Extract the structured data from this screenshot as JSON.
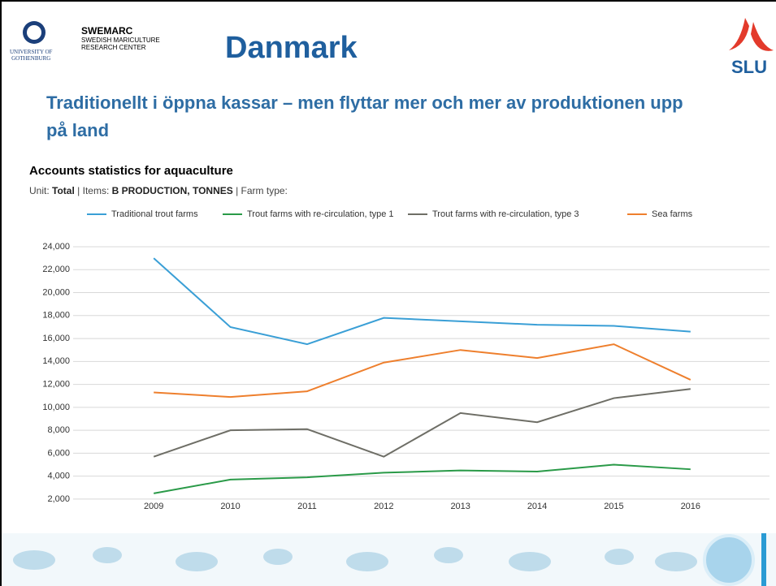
{
  "header": {
    "university": [
      "UNIVERSITY OF",
      "GOTHENBURG"
    ],
    "swemarc": {
      "name": "SWEMARC",
      "lines": [
        "SWEDISH MARICULTURE",
        "RESEARCH CENTER"
      ]
    },
    "title": "Danmark",
    "slu": "SLU"
  },
  "subtitle": "Traditionellt i öppna kassar – men flyttar mer och mer av produktionen upp på land",
  "chart_data": {
    "type": "line",
    "title": "Accounts statistics for aquaculture",
    "unit_label": "Unit:",
    "unit": "Total",
    "items_label": "| Items:",
    "items": "B PRODUCTION, TONNES",
    "farm_type_label": "| Farm type:",
    "categories": [
      "2009",
      "2010",
      "2011",
      "2012",
      "2013",
      "2014",
      "2015",
      "2016"
    ],
    "series": [
      {
        "name": "Traditional trout farms",
        "color": "#3a9fd6",
        "values": [
          23000,
          17000,
          15500,
          17800,
          17500,
          17200,
          17100,
          16600
        ]
      },
      {
        "name": "Trout farms with re-circulation, type 1",
        "color": "#2a9a48",
        "values": [
          2500,
          3700,
          3900,
          4300,
          4500,
          4400,
          5000,
          4600
        ]
      },
      {
        "name": "Trout farms with re-circulation, type 3",
        "color": "#6e6e66",
        "values": [
          5700,
          8000,
          8100,
          5700,
          9500,
          8700,
          10800,
          11600
        ]
      },
      {
        "name": "Sea farms",
        "color": "#ee7f2d",
        "values": [
          11300,
          10900,
          11400,
          13900,
          15000,
          14300,
          15500,
          12400
        ]
      }
    ],
    "ylim": [
      1500,
      24000
    ],
    "yticks": [
      {
        "value": 2000,
        "label": "2,000"
      },
      {
        "value": 4000,
        "label": "4,000"
      },
      {
        "value": 6000,
        "label": "6,000"
      },
      {
        "value": 8000,
        "label": "8,000"
      },
      {
        "value": 10000,
        "label": "10,000"
      },
      {
        "value": 12000,
        "label": "12,000"
      },
      {
        "value": 14000,
        "label": "14,000"
      },
      {
        "value": 16000,
        "label": "16,000"
      },
      {
        "value": 18000,
        "label": "18,000"
      },
      {
        "value": 20000,
        "label": "20,000"
      },
      {
        "value": 22000,
        "label": "22,000"
      },
      {
        "value": 24000,
        "label": "24,000"
      }
    ],
    "grid": true
  }
}
